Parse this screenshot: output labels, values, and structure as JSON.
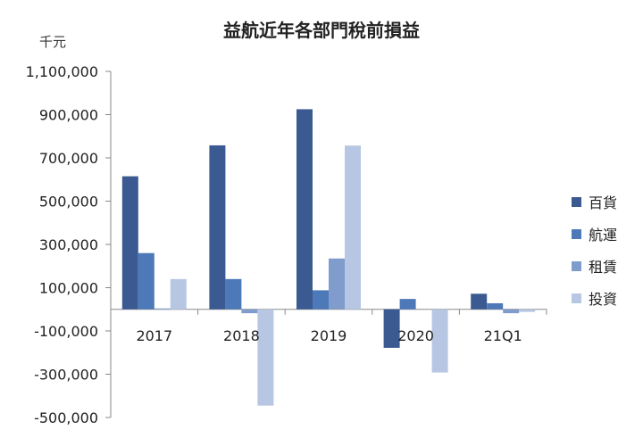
{
  "chart_data": {
    "type": "bar",
    "title": "益航近年各部門稅前損益",
    "unit": "千元",
    "categories": [
      "2017",
      "2018",
      "2019",
      "2020",
      "21Q1"
    ],
    "series": [
      {
        "name": "百貨",
        "color": "#3b5a91",
        "values": [
          615000,
          758000,
          925000,
          -178000,
          72000
        ]
      },
      {
        "name": "航運",
        "color": "#4e79b8",
        "values": [
          260000,
          140000,
          88000,
          48000,
          28000
        ]
      },
      {
        "name": "租賃",
        "color": "#7f9ccc",
        "values": [
          4000,
          -18000,
          235000,
          0,
          -18000
        ]
      },
      {
        "name": "投資",
        "color": "#b7c7e3",
        "values": [
          140000,
          -445000,
          757000,
          -292000,
          -12000
        ]
      }
    ],
    "yticks": [
      1100000,
      900000,
      700000,
      500000,
      300000,
      100000,
      -100000,
      -300000,
      -500000
    ],
    "ytick_labels": [
      "1,100,000",
      "900,000",
      "700,000",
      "500,000",
      "300,000",
      "100,000",
      "-100,000",
      "-300,000",
      "-500,000"
    ],
    "ylim": [
      -500000,
      1100000
    ],
    "legend_position": "right",
    "grid": false
  }
}
